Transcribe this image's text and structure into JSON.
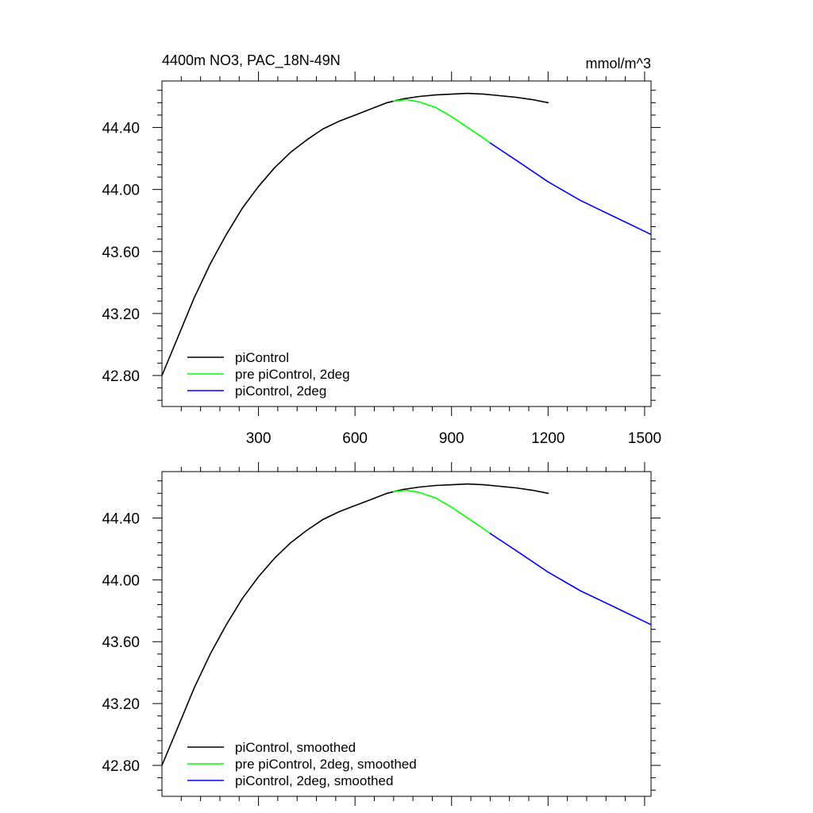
{
  "chart_data": [
    {
      "type": "line",
      "title_left": "4400m NO3, PAC_18N-49N",
      "title_right": "mmol/m^3",
      "xlim": [
        0,
        1520
      ],
      "ylim": [
        42.6,
        44.7
      ],
      "x_ticks": [
        300,
        600,
        900,
        1200,
        1500
      ],
      "x_tick_labels": [
        "300",
        "600",
        "900",
        "1200",
        "1500"
      ],
      "y_ticks": [
        42.8,
        43.2,
        43.6,
        44.0,
        44.4
      ],
      "y_tick_labels": [
        "42.80",
        "43.20",
        "43.60",
        "44.00",
        "44.40"
      ],
      "legend_position": "bottom-left",
      "series": [
        {
          "name": "piControl",
          "color": "#000000",
          "x": [
            0,
            50,
            100,
            150,
            200,
            250,
            300,
            350,
            400,
            450,
            500,
            550,
            600,
            650,
            700,
            750,
            800,
            850,
            900,
            950,
            1000,
            1050,
            1100,
            1150,
            1200
          ],
          "y": [
            42.8,
            43.05,
            43.3,
            43.52,
            43.71,
            43.88,
            44.02,
            44.14,
            44.24,
            44.32,
            44.39,
            44.44,
            44.48,
            44.52,
            44.56,
            44.585,
            44.6,
            44.61,
            44.615,
            44.62,
            44.615,
            44.605,
            44.595,
            44.58,
            44.56
          ]
        },
        {
          "name": "pre piControl, 2deg",
          "color": "#00ff00",
          "x": [
            720,
            760,
            800,
            850,
            900,
            950,
            1000,
            1020
          ],
          "y": [
            44.57,
            44.58,
            44.565,
            44.53,
            44.47,
            44.4,
            44.33,
            44.3
          ]
        },
        {
          "name": "piControl, 2deg",
          "color": "#0000ff",
          "x": [
            1020,
            1100,
            1200,
            1300,
            1400,
            1520
          ],
          "y": [
            44.3,
            44.19,
            44.05,
            43.93,
            43.83,
            43.71
          ]
        }
      ]
    },
    {
      "type": "line",
      "xlim": [
        0,
        1520
      ],
      "ylim": [
        42.6,
        44.7
      ],
      "x_ticks": [
        300,
        600,
        900,
        1200,
        1500
      ],
      "y_ticks": [
        42.8,
        43.2,
        43.6,
        44.0,
        44.4
      ],
      "y_tick_labels": [
        "42.80",
        "43.20",
        "43.60",
        "44.00",
        "44.40"
      ],
      "legend_position": "bottom-left",
      "series": [
        {
          "name": "piControl, smoothed",
          "color": "#000000",
          "x": [
            0,
            50,
            100,
            150,
            200,
            250,
            300,
            350,
            400,
            450,
            500,
            550,
            600,
            650,
            700,
            750,
            800,
            850,
            900,
            950,
            1000,
            1050,
            1100,
            1150,
            1200
          ],
          "y": [
            42.8,
            43.05,
            43.3,
            43.52,
            43.71,
            43.88,
            44.02,
            44.14,
            44.24,
            44.32,
            44.39,
            44.44,
            44.48,
            44.52,
            44.56,
            44.585,
            44.6,
            44.61,
            44.615,
            44.62,
            44.615,
            44.605,
            44.595,
            44.58,
            44.56
          ]
        },
        {
          "name": "pre piControl, 2deg, smoothed",
          "color": "#00ff00",
          "x": [
            720,
            760,
            800,
            850,
            900,
            950,
            1000,
            1020
          ],
          "y": [
            44.57,
            44.58,
            44.565,
            44.53,
            44.47,
            44.4,
            44.33,
            44.3
          ]
        },
        {
          "name": "piControl, 2deg, smoothed",
          "color": "#0000ff",
          "x": [
            1020,
            1100,
            1200,
            1300,
            1400,
            1520
          ],
          "y": [
            44.3,
            44.19,
            44.05,
            43.93,
            43.83,
            43.71
          ]
        }
      ]
    }
  ]
}
